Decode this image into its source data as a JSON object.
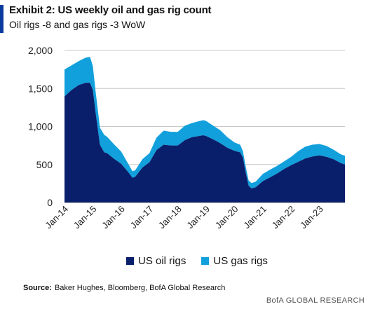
{
  "title": "Exhibit 2: US weekly oil and gas rig count",
  "subtitle": "Oil rigs -8 and gas rigs -3 WoW",
  "source_label": "Source:",
  "source_text": "Baker Hughes, Bloomberg, BofA Global Research",
  "brand": "BofA GLOBAL RESEARCH",
  "colors": {
    "oil": "#0a1f6b",
    "gas": "#12a0dc",
    "accent": "#0b3a9e",
    "grid": "#c8c8c8"
  },
  "chart_data": {
    "type": "area",
    "stacked": true,
    "xlabel": "",
    "ylabel": "",
    "ylim": [
      0,
      2000
    ],
    "yticks": [
      0,
      500,
      1000,
      1500,
      2000
    ],
    "ytick_labels": [
      "0",
      "500",
      "1,000",
      "1,500",
      "2,000"
    ],
    "xtick_labels": [
      "Jan-14",
      "Jan-15",
      "Jan-16",
      "Jan-17",
      "Jan-18",
      "Jan-19",
      "Jan-20",
      "Jan-21",
      "Jan-22",
      "Jan-23"
    ],
    "xlim": [
      2014.0,
      2023.9
    ],
    "legend_position": "bottom",
    "x": [
      2014.0,
      2014.25,
      2014.5,
      2014.75,
      2014.9,
      2015.0,
      2015.1,
      2015.25,
      2015.4,
      2015.5,
      2015.75,
      2016.0,
      2016.25,
      2016.4,
      2016.5,
      2016.75,
      2017.0,
      2017.25,
      2017.5,
      2017.75,
      2018.0,
      2018.25,
      2018.5,
      2018.75,
      2018.9,
      2019.0,
      2019.25,
      2019.5,
      2019.75,
      2020.0,
      2020.2,
      2020.3,
      2020.4,
      2020.5,
      2020.6,
      2020.75,
      2021.0,
      2021.25,
      2021.5,
      2021.75,
      2022.0,
      2022.25,
      2022.5,
      2022.75,
      2023.0,
      2023.25,
      2023.5,
      2023.75,
      2023.9
    ],
    "series": [
      {
        "name": "US oil rigs",
        "values": [
          1395,
          1480,
          1545,
          1575,
          1575,
          1480,
          1180,
          760,
          660,
          650,
          575,
          510,
          400,
          325,
          340,
          460,
          530,
          690,
          760,
          750,
          750,
          820,
          860,
          875,
          885,
          875,
          830,
          780,
          720,
          680,
          660,
          590,
          390,
          220,
          185,
          200,
          280,
          330,
          380,
          440,
          490,
          535,
          580,
          605,
          620,
          600,
          570,
          520,
          500
        ]
      },
      {
        "name": "US gas rigs",
        "values": [
          355,
          325,
          315,
          330,
          340,
          315,
          280,
          225,
          230,
          215,
          190,
          160,
          110,
          85,
          85,
          110,
          120,
          165,
          185,
          180,
          180,
          190,
          185,
          195,
          198,
          198,
          180,
          170,
          140,
          110,
          100,
          85,
          75,
          70,
          70,
          75,
          95,
          100,
          100,
          100,
          110,
          140,
          155,
          155,
          150,
          145,
          125,
          115,
          115
        ]
      }
    ]
  },
  "legend": [
    {
      "label": "US oil rigs"
    },
    {
      "label": "US gas rigs"
    }
  ]
}
